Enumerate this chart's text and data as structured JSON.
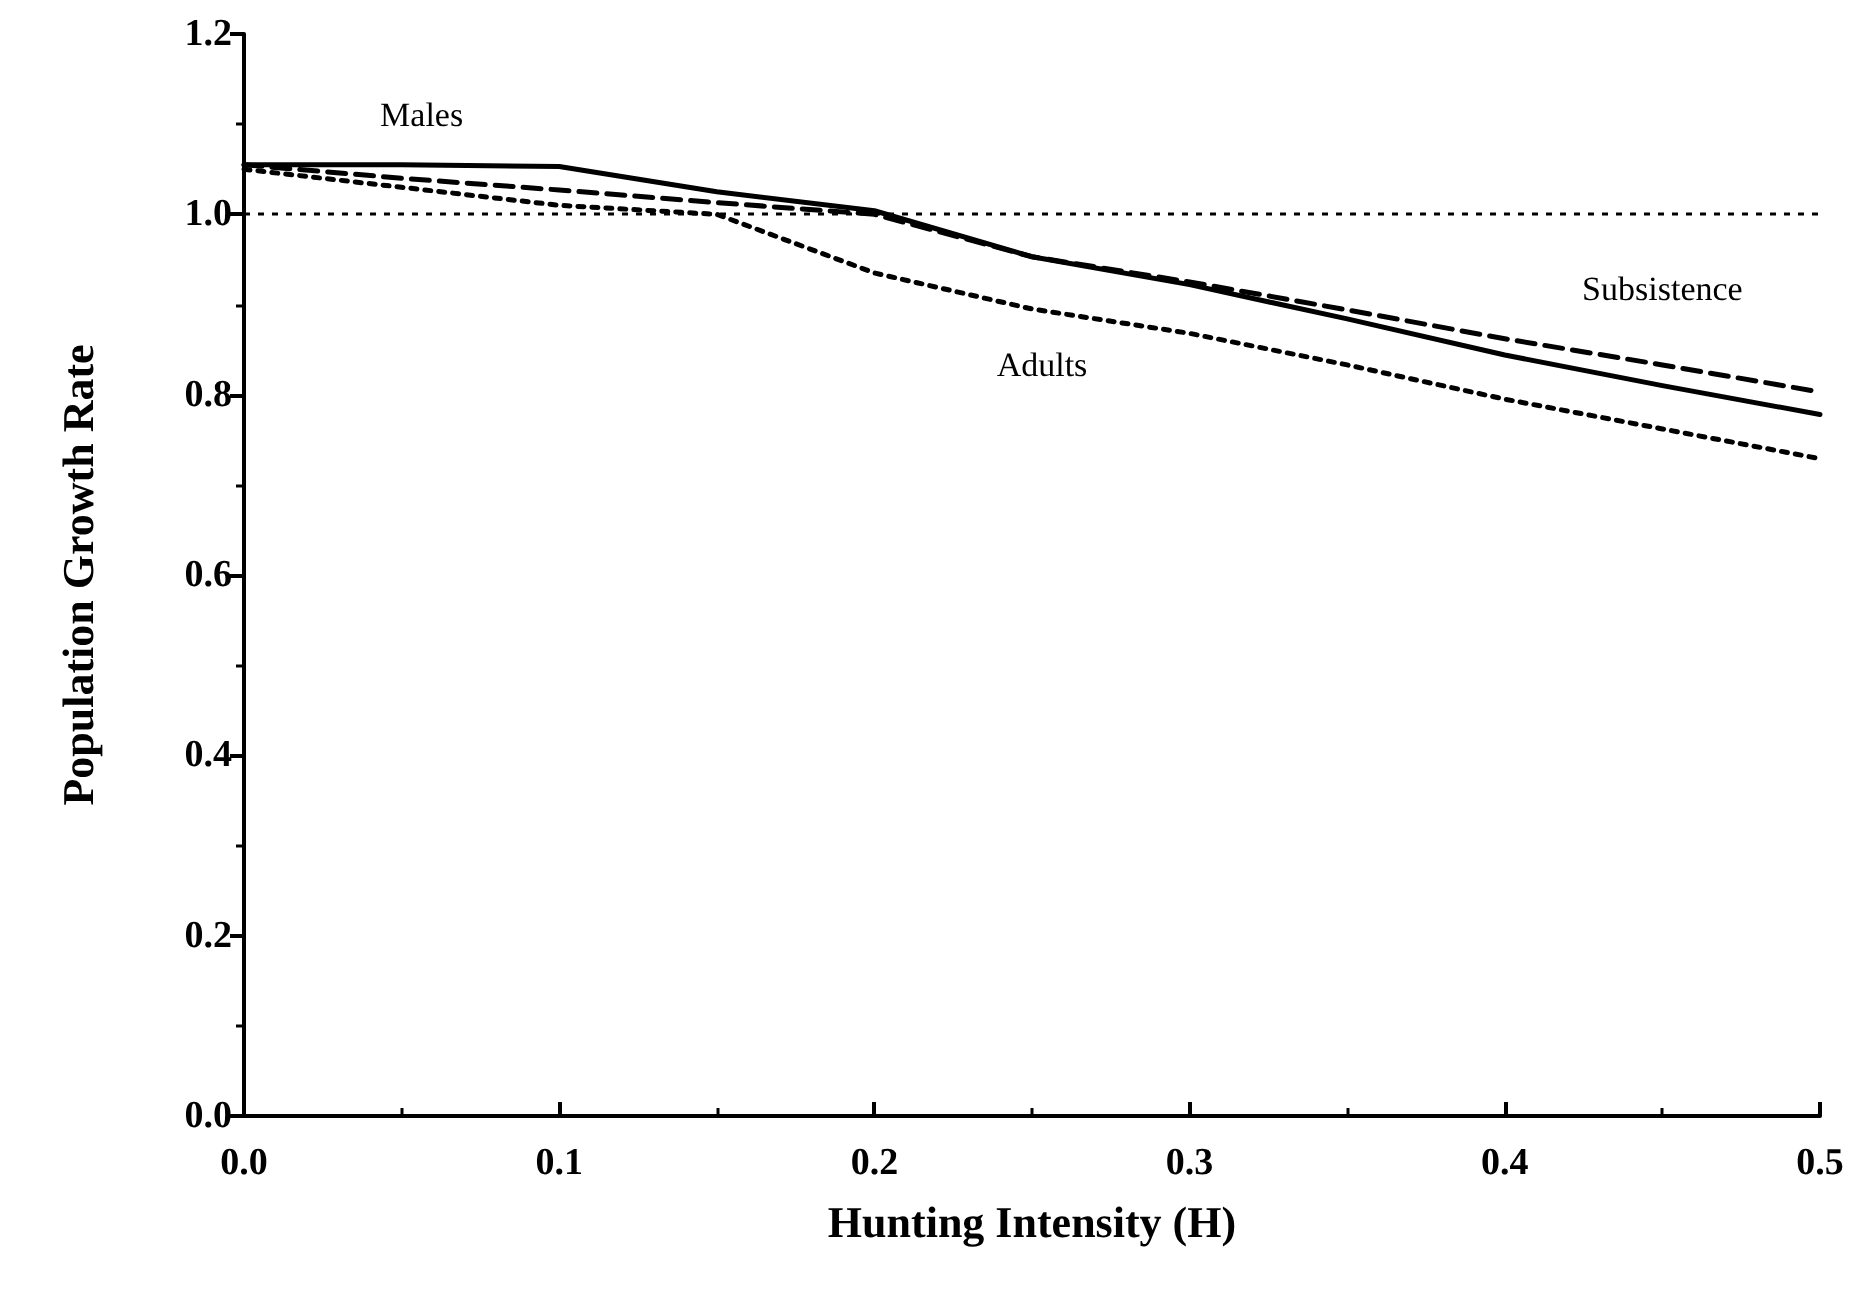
{
  "chart_data": {
    "type": "line",
    "xlabel": "Hunting Intensity (H)",
    "ylabel": "Population Growth Rate",
    "xlim": [
      0,
      0.5
    ],
    "xticks": [
      {
        "value": 0,
        "label": "0.0"
      },
      0.1,
      0.2,
      0.3,
      0.4,
      0.5
    ],
    "ylim": [
      0,
      1.2
    ],
    "yticks": [
      {
        "value": 0,
        "label": "0.0"
      },
      0.2,
      0.4,
      0.6,
      0.8,
      {
        "value": 1,
        "label": "1.0"
      },
      1.2
    ],
    "grid": false,
    "legend": false,
    "marker": "none",
    "series": [
      {
        "name": "Males",
        "color": "#000000",
        "line_style": "solid",
        "x": [
          0,
          0.05,
          0.1,
          0.15,
          0.2,
          0.25,
          0.3,
          0.35,
          0.4,
          0.45,
          0.5
        ],
        "values": [
          1.055,
          1.055,
          1.053,
          1.025,
          1.004,
          0.953,
          0.922,
          0.884,
          0.844,
          0.81,
          0.778
        ]
      },
      {
        "name": "Subsistence",
        "color": "#000000",
        "line_style": "dashed",
        "x": [
          0,
          0.05,
          0.1,
          0.15,
          0.2,
          0.25,
          0.3,
          0.35,
          0.4,
          0.45,
          0.5
        ],
        "values": [
          1.055,
          1.04,
          1.027,
          1.013,
          1.0,
          0.953,
          0.925,
          0.894,
          0.862,
          0.833,
          0.803
        ]
      },
      {
        "name": "Adults",
        "color": "#000000",
        "line_style": "dotted",
        "x": [
          0,
          0.05,
          0.1,
          0.15,
          0.2,
          0.25,
          0.3,
          0.35,
          0.4,
          0.45,
          0.5
        ],
        "values": [
          1.05,
          1.03,
          1.01,
          1.0,
          0.935,
          0.895,
          0.868,
          0.833,
          0.795,
          0.762,
          0.729
        ]
      }
    ],
    "ref_lines": [
      {
        "axis": "y",
        "value": 1.0,
        "line_style": "dotted",
        "color": "#000000"
      }
    ]
  }
}
